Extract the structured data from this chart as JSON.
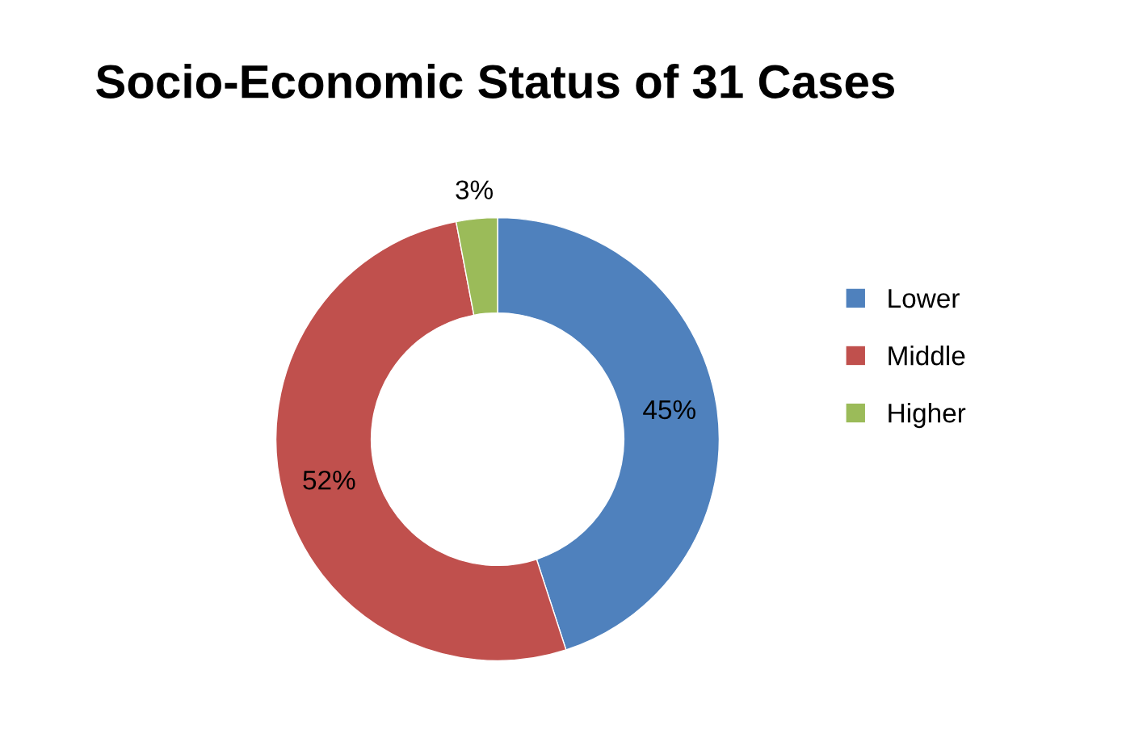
{
  "chart_data": {
    "type": "donut",
    "title": "Socio-Economic Status of 31 Cases",
    "categories": [
      "Lower",
      "Middle",
      "Higher"
    ],
    "values": [
      45,
      52,
      3
    ],
    "value_labels": [
      "45%",
      "52%",
      "3%"
    ],
    "colors": [
      "#4f81bd",
      "#c0504d",
      "#9bbb59"
    ],
    "legend": "right"
  }
}
